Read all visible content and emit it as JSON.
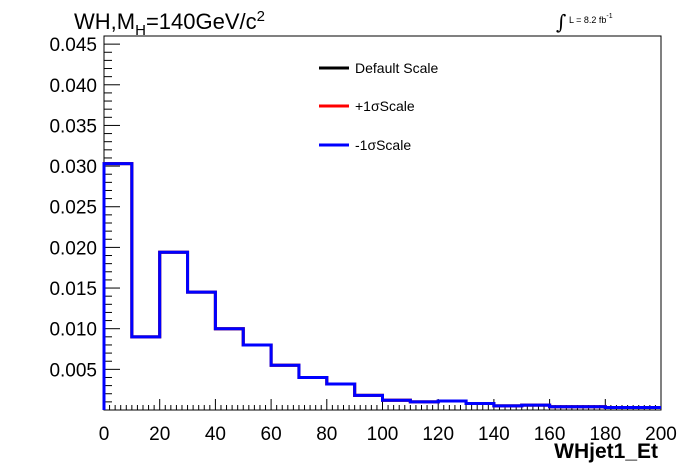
{
  "chart_data": {
    "type": "histogram",
    "title_main": "WH,M",
    "title_sub": "H",
    "title_rest": "=140GeV/c",
    "title_sup": "2",
    "lumi_int": "∫",
    "lumi_text": "L = 8.2 fb",
    "lumi_sup": "-1",
    "xlabel": "WHjet1_Et",
    "ylabel": "",
    "xlim": [
      0,
      200
    ],
    "ylim": [
      0,
      0.046
    ],
    "x_ticks": [
      0,
      20,
      40,
      60,
      80,
      100,
      120,
      140,
      160,
      180,
      200
    ],
    "y_ticks": [
      0.005,
      0.01,
      0.015,
      0.02,
      0.025,
      0.03,
      0.035,
      0.04,
      0.045
    ],
    "y_tick_labels": [
      "0.005",
      "0.010",
      "0.015",
      "0.020",
      "0.025",
      "0.030",
      "0.035",
      "0.040",
      "0.045"
    ],
    "bin_edges": [
      0,
      10,
      20,
      30,
      40,
      50,
      60,
      70,
      80,
      90,
      100,
      110,
      120,
      130,
      140,
      150,
      160,
      170,
      180,
      190,
      200
    ],
    "series": [
      {
        "name": "Default Scale",
        "color": "#000000",
        "values": [
          0.0303,
          0.009,
          0.0194,
          0.0145,
          0.01,
          0.008,
          0.0055,
          0.004,
          0.0032,
          0.0018,
          0.0012,
          0.001,
          0.0011,
          0.0008,
          0.0005,
          0.0006,
          0.0004,
          0.0004,
          0.0003,
          0.0003
        ]
      },
      {
        "name": "+1σScale",
        "color": "#ff0000",
        "values": [
          0.0303,
          0.009,
          0.0194,
          0.0145,
          0.01,
          0.008,
          0.0055,
          0.004,
          0.0032,
          0.0018,
          0.0012,
          0.001,
          0.0011,
          0.0008,
          0.0005,
          0.0006,
          0.0004,
          0.0004,
          0.0003,
          0.0003
        ]
      },
      {
        "name": "-1σScale",
        "color": "#0000ff",
        "values": [
          0.0303,
          0.009,
          0.0194,
          0.0145,
          0.01,
          0.008,
          0.0055,
          0.004,
          0.0032,
          0.0018,
          0.0012,
          0.001,
          0.0011,
          0.0008,
          0.0005,
          0.0006,
          0.0004,
          0.0004,
          0.0003,
          0.0003
        ]
      }
    ],
    "legend_position": "top-center",
    "grid": false
  }
}
